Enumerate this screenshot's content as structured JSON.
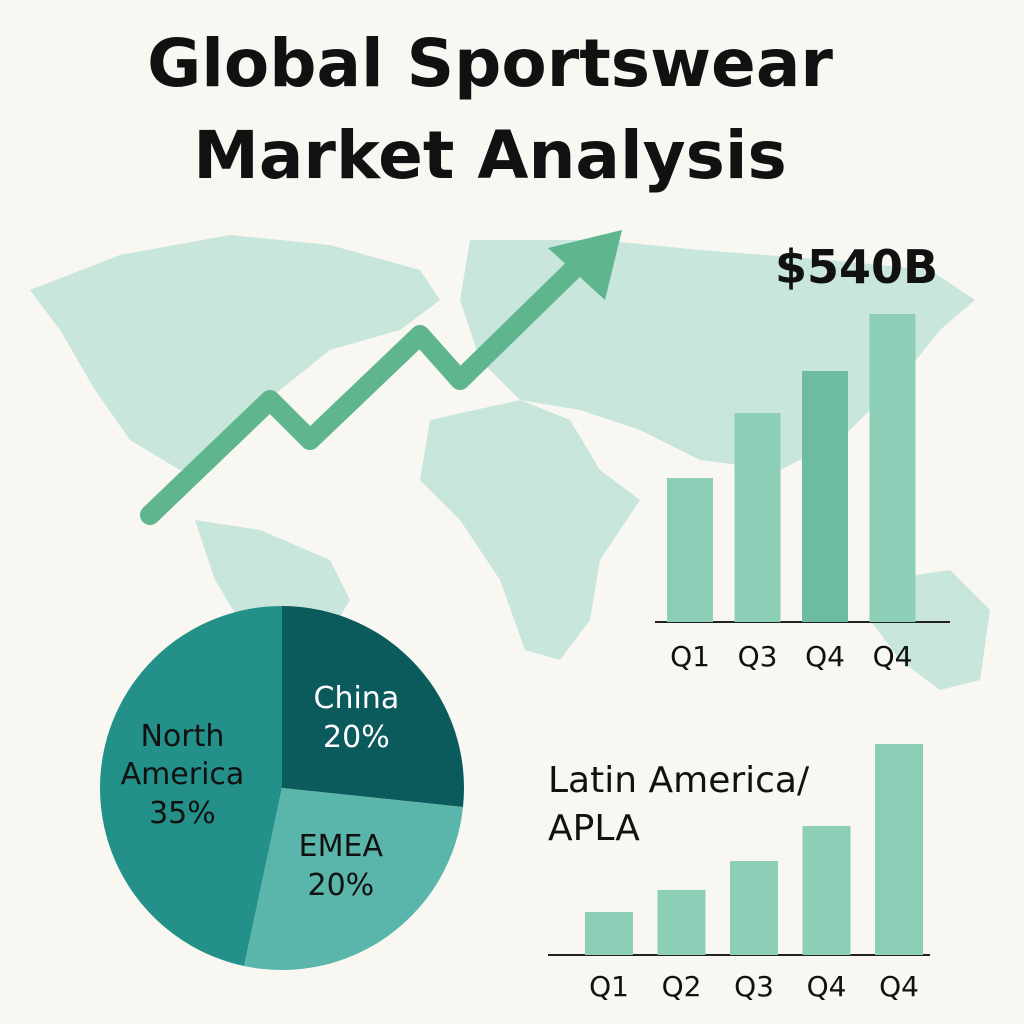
{
  "title": "Global Sportswear Market Analysis",
  "annotation": "$540B",
  "chart_data": [
    {
      "type": "pie",
      "categories": [
        "North America",
        "China",
        "EMEA"
      ],
      "values": [
        35,
        20,
        20
      ],
      "value_labels": [
        "35%",
        "20%",
        "20%"
      ],
      "colors": [
        "#23918a",
        "#0b5a5c",
        "#5ab5aa"
      ]
    },
    {
      "type": "bar",
      "categories": [
        "Q1",
        "Q3",
        "Q4",
        "Q4"
      ],
      "values": [
        144,
        209,
        251,
        308
      ],
      "ylim": [
        0,
        330
      ],
      "colors": [
        "#8ccfb6",
        "#8ccfb6",
        "#6dbba3",
        "#8ccfb6"
      ]
    },
    {
      "type": "bar",
      "title": [
        "Latin America/",
        "APLA"
      ],
      "categories": [
        "Q1",
        "Q2",
        "Q3",
        "Q4",
        "Q4"
      ],
      "values": [
        43,
        65,
        94,
        129,
        211
      ],
      "ylim": [
        0,
        220
      ],
      "colors": [
        "#8ccfb6",
        "#8ccfb6",
        "#8ccfb6",
        "#8ccfb6",
        "#8ccfb6"
      ]
    }
  ]
}
